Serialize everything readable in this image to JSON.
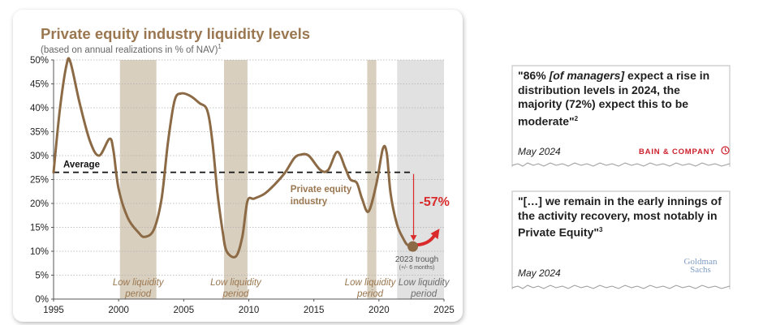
{
  "chart_data": {
    "type": "line",
    "title": "Private equity industry liquidity levels",
    "subtitle": "(based on annual realizations in % of NAV)",
    "subtitle_footnote": "1",
    "xlim": [
      1995,
      2025
    ],
    "ylim": [
      0,
      50
    ],
    "x_ticks": [
      "1995",
      "2000",
      "2005",
      "2010",
      "2015",
      "2020",
      "2025"
    ],
    "y_ticks": [
      "0%",
      "5%",
      "10%",
      "15%",
      "20%",
      "25%",
      "30%",
      "35%",
      "40%",
      "45%",
      "50%"
    ],
    "series": [
      {
        "name": "Private equity industry",
        "color": "#8b6a45",
        "points": [
          [
            1995.0,
            26.5
          ],
          [
            1995.5,
            40.0
          ],
          [
            1996.0,
            49.0
          ],
          [
            1996.3,
            49.5
          ],
          [
            1997.0,
            41.0
          ],
          [
            1997.8,
            33.0
          ],
          [
            1998.5,
            30.0
          ],
          [
            1999.3,
            33.5
          ],
          [
            1999.6,
            31.0
          ],
          [
            2000.0,
            23.0
          ],
          [
            2000.7,
            17.0
          ],
          [
            2001.5,
            14.0
          ],
          [
            2002.0,
            13.0
          ],
          [
            2002.7,
            14.5
          ],
          [
            2003.3,
            21.0
          ],
          [
            2003.8,
            33.0
          ],
          [
            2004.3,
            41.5
          ],
          [
            2004.8,
            43.0
          ],
          [
            2005.5,
            42.5
          ],
          [
            2006.2,
            41.0
          ],
          [
            2006.8,
            39.5
          ],
          [
            2007.2,
            33.0
          ],
          [
            2007.6,
            22.0
          ],
          [
            2008.0,
            14.0
          ],
          [
            2008.3,
            10.0
          ],
          [
            2009.0,
            8.9
          ],
          [
            2009.5,
            13.0
          ],
          [
            2009.9,
            20.5
          ],
          [
            2010.4,
            21.0
          ],
          [
            2011.2,
            22.0
          ],
          [
            2012.0,
            24.0
          ],
          [
            2012.8,
            26.5
          ],
          [
            2013.5,
            29.5
          ],
          [
            2014.0,
            30.2
          ],
          [
            2014.6,
            30.0
          ],
          [
            2015.5,
            27.0
          ],
          [
            2016.1,
            27.0
          ],
          [
            2016.8,
            30.8
          ],
          [
            2017.4,
            27.5
          ],
          [
            2017.8,
            25.0
          ],
          [
            2018.3,
            24.3
          ],
          [
            2018.7,
            21.0
          ],
          [
            2019.2,
            18.3
          ],
          [
            2019.8,
            24.0
          ],
          [
            2020.3,
            31.4
          ],
          [
            2020.6,
            30.5
          ],
          [
            2020.9,
            22.0
          ],
          [
            2021.4,
            15.5
          ],
          [
            2021.9,
            12.5
          ],
          [
            2022.2,
            11.3
          ],
          [
            2022.6,
            11.0
          ]
        ]
      }
    ],
    "low_liquidity_periods": [
      {
        "start": 2000.1,
        "end": 2002.9,
        "label_line1": "Low liquidity",
        "label_line2": "period",
        "color": "#d9cfbf"
      },
      {
        "start": 2008.1,
        "end": 2009.9,
        "label_line1": "Low liquidity",
        "label_line2": "period",
        "color": "#d9cfbf"
      },
      {
        "start": 2019.1,
        "end": 2019.8,
        "label_line1": "Low liquidity",
        "label_line2": "period",
        "color": "#d9cfbf"
      },
      {
        "start": 2021.4,
        "end": 2025.0,
        "label_line1": "Low liquidity",
        "label_line2": "period",
        "color": "#e1e1e1"
      }
    ],
    "average": {
      "value": 26.5,
      "label": "Average",
      "x_end": 2022.6
    },
    "series_label_line1": "Private equity",
    "series_label_line2": "industry",
    "trough": {
      "x": 2022.6,
      "y": 11.0,
      "label": "2023 trough",
      "sublabel": "(+/- 6 months)"
    },
    "change_label": "-57%",
    "grid": true,
    "legend": "none"
  },
  "quotes": [
    {
      "text_pre": "\"86% ",
      "text_italic": "[of managers]",
      "text_post": " expect a rise in distribution levels in 2024, the majority (72%) expect this to be moderate\"",
      "footnote": "2",
      "date": "May 2024",
      "source_logo": "BAIN & COMPANY",
      "logo_icon": "bain-circle-icon"
    },
    {
      "text_pre": "\"[…] we remain in the early innings of the activity recovery, most notably in Private Equity\"",
      "text_italic": "",
      "text_post": "",
      "footnote": "3",
      "date": "May 2024",
      "source_logo_line1": "Goldman",
      "source_logo_line2": "Sachs"
    }
  ]
}
